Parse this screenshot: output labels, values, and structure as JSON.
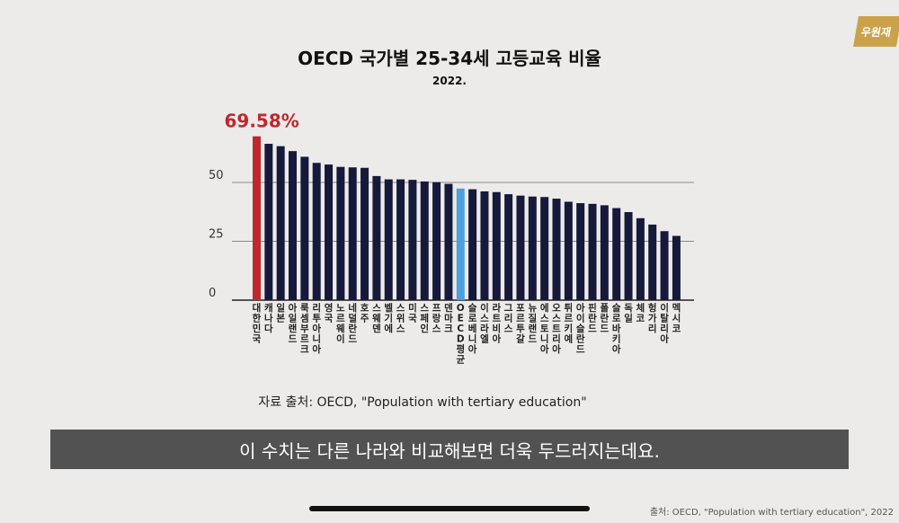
{
  "chart_data": {
    "type": "bar",
    "title": "OECD 국가별 25-34세 고등교육 비율",
    "subtitle": "2022.",
    "highlight_label": "69.58%",
    "source": "자료 출처: OECD, \"Population with tertiary education\"",
    "yticks": [
      0,
      25,
      50
    ],
    "ylim": [
      0,
      70
    ],
    "grid": true,
    "categories": [
      "대한민국",
      "캐나다",
      "일본",
      "아일랜드",
      "룩셈부르크",
      "리투아니아",
      "영국",
      "노르웨이",
      "네덜란드",
      "호주",
      "스웨덴",
      "벨기에",
      "스위스",
      "미국",
      "스페인",
      "프랑스",
      "덴마크",
      "OECD평균",
      "슬로베니아",
      "이스라엘",
      "라트비아",
      "그리스",
      "포르투갈",
      "뉴질랜드",
      "에스토니아",
      "오스트리아",
      "튀르키예",
      "아이슬란드",
      "핀란드",
      "폴란드",
      "슬로바키아",
      "독일",
      "체코",
      "헝가리",
      "이탈리아",
      "멕시코"
    ],
    "values": [
      69.58,
      66.4,
      65.4,
      63.3,
      60.9,
      58.3,
      57.6,
      56.6,
      56.4,
      56.2,
      52.7,
      51.3,
      51.3,
      51.1,
      50.4,
      50.1,
      49.4,
      47.4,
      47.1,
      46.2,
      45.9,
      45.0,
      44.4,
      44.0,
      43.8,
      43.1,
      41.8,
      41.2,
      40.9,
      40.3,
      39.1,
      37.4,
      34.8,
      32.1,
      29.3,
      27.3
    ],
    "colors": {
      "highlight": "#c0282e",
      "average": "#4f9ede",
      "default": "#16193a"
    },
    "highlight_index": 0,
    "average_index": 17
  },
  "caption": "이 수치는 다른 나라와 비교해보면 더욱 두드러지는데요.",
  "corner_source": "출처: OECD, \"Population with tertiary education\", 2022",
  "brand_label": "우원재"
}
